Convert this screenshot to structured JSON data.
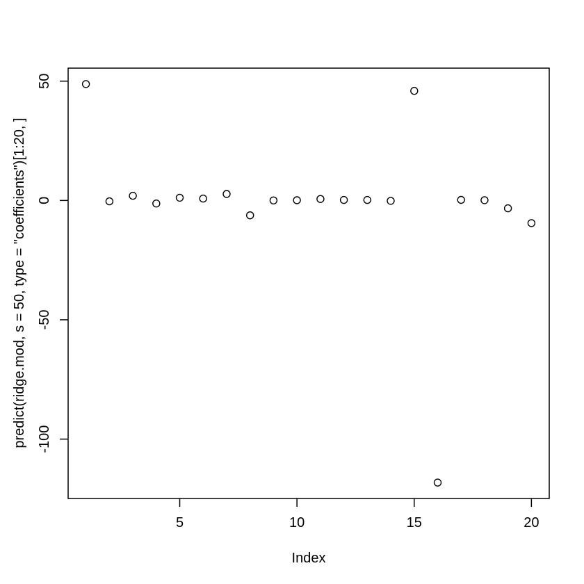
{
  "figure": {
    "background_color": "#ffffff",
    "foreground_color": "#000000"
  },
  "chart_data": {
    "type": "scatter",
    "title": "",
    "xlabel": "Index",
    "ylabel": "predict(ridge.mod, s = 50, type = \"coefficients\")[1:20, ]",
    "marker": "open-circle",
    "grid": false,
    "legend": null,
    "x": [
      1,
      2,
      3,
      4,
      5,
      6,
      7,
      8,
      9,
      10,
      11,
      12,
      13,
      14,
      15,
      16,
      17,
      18,
      19,
      20
    ],
    "y": [
      48.77,
      -0.36,
      1.97,
      -1.28,
      1.15,
      0.8,
      2.72,
      -6.22,
      0.01,
      0.11,
      0.62,
      0.22,
      0.22,
      -0.15,
      45.93,
      -118.2,
      0.25,
      0.12,
      -3.28,
      -9.5
    ],
    "xticks": [
      5,
      10,
      15,
      20
    ],
    "yticks": [
      50,
      0,
      -50,
      -100
    ],
    "xlim": [
      0.24,
      20.76
    ],
    "ylim": [
      -124.88,
      55.45
    ]
  }
}
